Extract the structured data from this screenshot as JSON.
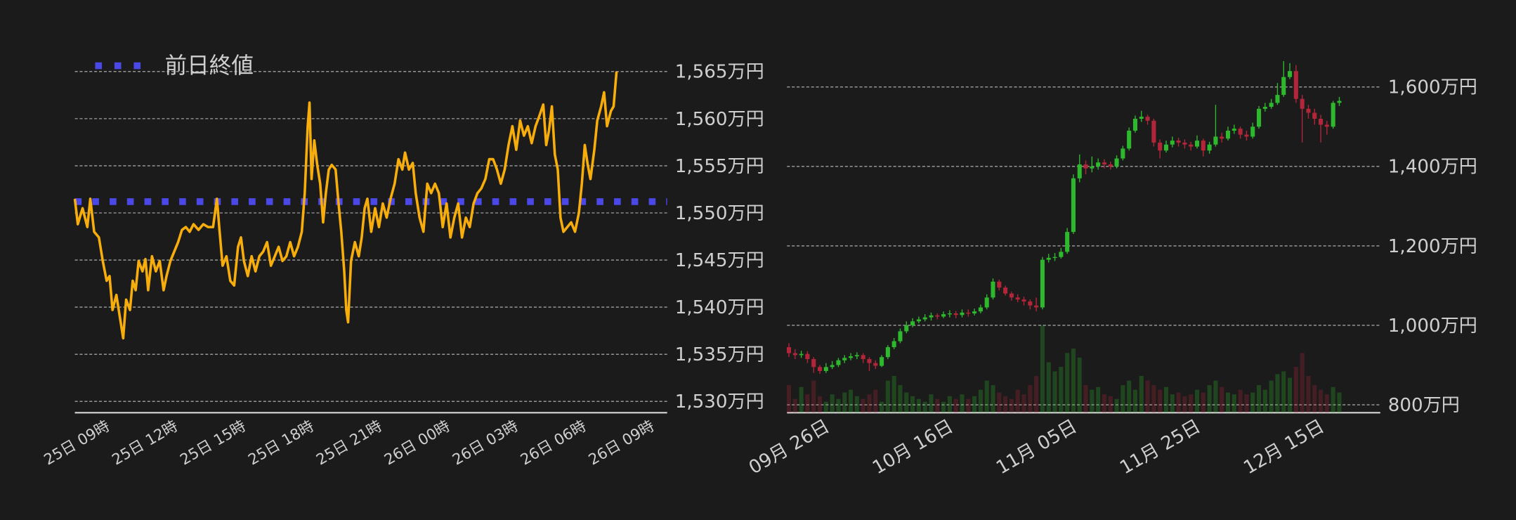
{
  "chart_data": [
    {
      "type": "line",
      "x": [
        0,
        0.13,
        0.34,
        0.55,
        0.68,
        0.85,
        1.06,
        1.23,
        1.4,
        1.53,
        1.66,
        1.83,
        2.0,
        2.13,
        2.26,
        2.43,
        2.55,
        2.68,
        2.81,
        2.98,
        3.11,
        3.23,
        3.4,
        3.57,
        3.74,
        3.91,
        4.04,
        4.21,
        4.38,
        4.55,
        4.72,
        4.89,
        5.06,
        5.23,
        5.45,
        5.66,
        5.87,
        6.09,
        6.26,
        6.38,
        6.51,
        6.68,
        6.85,
        7.02,
        7.19,
        7.32,
        7.45,
        7.62,
        7.79,
        7.96,
        8.13,
        8.3,
        8.47,
        8.64,
        8.81,
        8.98,
        9.15,
        9.32,
        9.49,
        9.66,
        9.83,
        10.0,
        10.13,
        10.26,
        10.34,
        10.43,
        10.55,
        10.68,
        10.81,
        10.94,
        11.06,
        11.19,
        11.32,
        11.49,
        11.62,
        11.74,
        11.87,
        11.96,
        12.04,
        12.17,
        12.34,
        12.51,
        12.64,
        12.77,
        12.89,
        13.06,
        13.23,
        13.4,
        13.57,
        13.74,
        13.91,
        14.09,
        14.26,
        14.43,
        14.55,
        14.72,
        14.89,
        15.02,
        15.19,
        15.36,
        15.53,
        15.7,
        15.87,
        16.04,
        16.21,
        16.38,
        16.55,
        16.72,
        16.89,
        17.06,
        17.23,
        17.4,
        17.57,
        17.74,
        17.91,
        18.09,
        18.26,
        18.43,
        18.6,
        18.77,
        18.94,
        19.11,
        19.28,
        19.45,
        19.62,
        19.79,
        19.96,
        20.13,
        20.3,
        20.47,
        20.64,
        20.77,
        20.89,
        21.02,
        21.15,
        21.28,
        21.4,
        21.53,
        21.7,
        21.87,
        22.04,
        22.21,
        22.34,
        22.47,
        22.6,
        22.72,
        22.89,
        23.02,
        23.19,
        23.32,
        23.45,
        23.62,
        23.74,
        23.83,
        23.87
      ],
      "series": [
        {
          "color": "#f7ae0c",
          "values": [
            1551.5,
            1548.8,
            1550.5,
            1548.5,
            1551.5,
            1548.0,
            1547.4,
            1544.9,
            1542.8,
            1543.3,
            1539.7,
            1541.3,
            1538.7,
            1536.7,
            1540.8,
            1539.7,
            1542.8,
            1541.8,
            1544.9,
            1543.8,
            1545.1,
            1541.8,
            1545.4,
            1543.8,
            1544.9,
            1541.8,
            1543.3,
            1544.9,
            1545.9,
            1546.9,
            1548.2,
            1548.5,
            1548.0,
            1548.8,
            1548.2,
            1548.8,
            1548.5,
            1548.5,
            1551.5,
            1548.0,
            1544.4,
            1545.4,
            1542.8,
            1542.3,
            1546.4,
            1547.4,
            1544.9,
            1543.3,
            1545.4,
            1543.8,
            1545.4,
            1545.9,
            1546.9,
            1544.4,
            1545.4,
            1546.4,
            1544.9,
            1545.4,
            1546.9,
            1545.4,
            1546.4,
            1548.0,
            1552.1,
            1559.2,
            1561.7,
            1553.6,
            1557.7,
            1555.1,
            1553.1,
            1549.0,
            1552.1,
            1554.6,
            1555.1,
            1554.6,
            1551.0,
            1548.0,
            1543.8,
            1539.7,
            1538.4,
            1544.9,
            1546.9,
            1545.4,
            1547.4,
            1550.5,
            1551.5,
            1548.0,
            1550.5,
            1548.5,
            1551.0,
            1549.5,
            1551.5,
            1553.1,
            1555.7,
            1554.6,
            1556.4,
            1554.6,
            1555.3,
            1552.1,
            1549.5,
            1548.0,
            1553.1,
            1552.1,
            1553.1,
            1552.1,
            1548.5,
            1551.0,
            1547.4,
            1549.5,
            1551.0,
            1547.4,
            1549.5,
            1548.5,
            1551.0,
            1552.1,
            1552.6,
            1553.6,
            1555.7,
            1555.7,
            1554.6,
            1553.1,
            1554.6,
            1557.2,
            1559.2,
            1556.7,
            1559.8,
            1558.2,
            1559.2,
            1557.4,
            1559.2,
            1560.3,
            1561.5,
            1557.2,
            1558.7,
            1561.3,
            1556.2,
            1554.6,
            1549.5,
            1548.0,
            1548.5,
            1549.0,
            1548.0,
            1550.0,
            1553.1,
            1557.2,
            1555.1,
            1553.6,
            1556.7,
            1559.8,
            1561.3,
            1562.8,
            1559.2,
            1560.8,
            1561.3,
            1563.9,
            1565.0
          ]
        }
      ],
      "reference_line": {
        "name": "前日終値",
        "value": 1551.2,
        "color": "#4b48e8"
      },
      "legend": "upper left",
      "xlim": [
        0,
        26.1
      ],
      "xticks": [
        {
          "value": 0,
          "label": "25日 09時"
        },
        {
          "value": 3,
          "label": "25日 12時"
        },
        {
          "value": 6,
          "label": "25日 15時"
        },
        {
          "value": 9,
          "label": "25日 18時"
        },
        {
          "value": 12,
          "label": "25日 21時"
        },
        {
          "value": 15,
          "label": "26日 00時"
        },
        {
          "value": 18,
          "label": "26日 03時"
        },
        {
          "value": 21,
          "label": "26日 06時"
        },
        {
          "value": 24,
          "label": "26日 09時"
        }
      ],
      "ylim": [
        1528.8,
        1566.5
      ],
      "yticks": [
        {
          "value": 1530,
          "label": "1,530万円"
        },
        {
          "value": 1535,
          "label": "1,535万円"
        },
        {
          "value": 1540,
          "label": "1,540万円"
        },
        {
          "value": 1545,
          "label": "1,545万円"
        },
        {
          "value": 1550,
          "label": "1,550万円"
        },
        {
          "value": 1555,
          "label": "1,555万円"
        },
        {
          "value": 1560,
          "label": "1,560万円"
        },
        {
          "value": 1565,
          "label": "1,565万円"
        }
      ],
      "grid": true
    },
    {
      "type": "candlestick",
      "categories": [
        null,
        null,
        null,
        null,
        "09月 26日",
        null,
        null,
        null,
        null,
        null,
        null,
        null,
        null,
        null,
        null,
        null,
        null,
        null,
        null,
        null,
        null,
        null,
        null,
        null,
        "10月 16日",
        null,
        null,
        null,
        null,
        null,
        null,
        null,
        null,
        null,
        null,
        null,
        null,
        null,
        null,
        null,
        null,
        null,
        null,
        null,
        "11月 05日",
        null,
        null,
        null,
        null,
        null,
        null,
        null,
        null,
        null,
        null,
        null,
        null,
        null,
        null,
        null,
        null,
        null,
        null,
        null,
        "11月 25日",
        null,
        null,
        null,
        null,
        null,
        null,
        null,
        null,
        null,
        null,
        null,
        null,
        null,
        null,
        null,
        null,
        null,
        null,
        null,
        "12月 15日",
        null,
        null,
        null,
        null,
        null
      ],
      "open": [
        945,
        930,
        925,
        928,
        915,
        895,
        885,
        895,
        900,
        912,
        918,
        922,
        925,
        915,
        905,
        898,
        920,
        945,
        960,
        985,
        1000,
        1010,
        1015,
        1020,
        1025,
        1022,
        1028,
        1030,
        1026,
        1032,
        1030,
        1035,
        1045,
        1070,
        1110,
        1095,
        1080,
        1070,
        1065,
        1060,
        1050,
        1045,
        1165,
        1170,
        1172,
        1185,
        1235,
        1370,
        1405,
        1395,
        1400,
        1410,
        1405,
        1400,
        1420,
        1445,
        1490,
        1520,
        1525,
        1515,
        1460,
        1440,
        1455,
        1465,
        1460,
        1455,
        1450,
        1465,
        1440,
        1455,
        1475,
        1470,
        1490,
        1495,
        1480,
        1475,
        1500,
        1545,
        1550,
        1560,
        1580,
        1625,
        1640,
        1570,
        1545,
        1535,
        1520,
        1505,
        1500,
        1560
      ],
      "high": [
        955,
        940,
        936,
        935,
        920,
        900,
        905,
        910,
        918,
        925,
        930,
        932,
        930,
        920,
        912,
        925,
        950,
        968,
        992,
        1010,
        1018,
        1022,
        1028,
        1032,
        1030,
        1035,
        1038,
        1036,
        1040,
        1040,
        1042,
        1052,
        1078,
        1118,
        1115,
        1100,
        1085,
        1078,
        1072,
        1065,
        1070,
        1172,
        1180,
        1182,
        1195,
        1245,
        1380,
        1430,
        1415,
        1425,
        1420,
        1418,
        1412,
        1428,
        1452,
        1498,
        1528,
        1540,
        1530,
        1520,
        1468,
        1465,
        1475,
        1472,
        1468,
        1462,
        1478,
        1470,
        1462,
        1555,
        1485,
        1500,
        1505,
        1500,
        1490,
        1510,
        1552,
        1560,
        1570,
        1610,
        1665,
        1660,
        1655,
        1580,
        1555,
        1545,
        1530,
        1515,
        1565,
        1575
      ],
      "low": [
        920,
        915,
        918,
        905,
        880,
        878,
        880,
        890,
        895,
        905,
        912,
        915,
        905,
        885,
        890,
        895,
        915,
        940,
        955,
        980,
        995,
        1005,
        1010,
        1012,
        1015,
        1018,
        1020,
        1018,
        1020,
        1022,
        1025,
        1030,
        1040,
        1065,
        1088,
        1075,
        1062,
        1058,
        1050,
        1040,
        1035,
        1040,
        1158,
        1162,
        1168,
        1180,
        1230,
        1360,
        1380,
        1385,
        1392,
        1395,
        1392,
        1395,
        1415,
        1440,
        1485,
        1512,
        1505,
        1450,
        1420,
        1435,
        1448,
        1450,
        1445,
        1440,
        1445,
        1425,
        1432,
        1450,
        1460,
        1465,
        1482,
        1470,
        1465,
        1470,
        1495,
        1538,
        1545,
        1555,
        1575,
        1620,
        1560,
        1460,
        1520,
        1505,
        1460,
        1480,
        1495,
        1552
      ],
      "close": [
        930,
        925,
        928,
        915,
        895,
        885,
        895,
        900,
        912,
        918,
        922,
        925,
        915,
        905,
        898,
        920,
        945,
        960,
        985,
        1000,
        1010,
        1015,
        1020,
        1025,
        1022,
        1028,
        1030,
        1026,
        1032,
        1030,
        1035,
        1045,
        1070,
        1110,
        1095,
        1080,
        1070,
        1065,
        1060,
        1050,
        1045,
        1165,
        1170,
        1172,
        1185,
        1235,
        1370,
        1405,
        1395,
        1400,
        1410,
        1405,
        1400,
        1420,
        1445,
        1490,
        1520,
        1525,
        1515,
        1460,
        1440,
        1455,
        1465,
        1460,
        1455,
        1450,
        1465,
        1440,
        1455,
        1475,
        1470,
        1490,
        1495,
        1480,
        1475,
        1500,
        1545,
        1550,
        1560,
        1580,
        1625,
        1640,
        1570,
        1545,
        1535,
        1520,
        1505,
        1500,
        1560,
        1565
      ],
      "volume": [
        30,
        15,
        28,
        20,
        35,
        18,
        12,
        20,
        15,
        22,
        25,
        18,
        15,
        20,
        25,
        12,
        35,
        40,
        30,
        22,
        18,
        15,
        12,
        20,
        15,
        12,
        18,
        15,
        20,
        15,
        18,
        25,
        35,
        30,
        22,
        18,
        15,
        25,
        20,
        30,
        40,
        95,
        55,
        45,
        50,
        65,
        70,
        60,
        30,
        25,
        28,
        20,
        18,
        15,
        30,
        35,
        25,
        40,
        35,
        30,
        25,
        28,
        20,
        22,
        18,
        20,
        25,
        22,
        30,
        35,
        28,
        22,
        20,
        25,
        20,
        22,
        30,
        25,
        35,
        42,
        45,
        38,
        50,
        65,
        40,
        30,
        25,
        20,
        28,
        22
      ],
      "up_color": "#2eb82e",
      "down_color": "#b3263a",
      "ylim": [
        780,
        1680
      ],
      "yticks": [
        {
          "value": 800,
          "label": "800万円"
        },
        {
          "value": 1000,
          "label": "1,000万円"
        },
        {
          "value": 1200,
          "label": "1,200万円"
        },
        {
          "value": 1400,
          "label": "1,400万円"
        },
        {
          "value": 1600,
          "label": "1,600万円"
        }
      ],
      "volume_ylim": [
        0,
        100
      ],
      "grid": true
    }
  ]
}
